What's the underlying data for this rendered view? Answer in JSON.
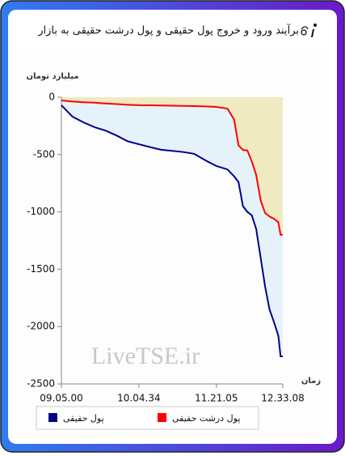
{
  "chart_data": {
    "type": "line",
    "title": "برآیند ورود و خروج پول حقیقی و پول درشت حقیقی به بازار",
    "y_label": "میلیارد تومان",
    "x_label": "زمان",
    "watermark": "LiveTSE.ir",
    "x": [
      0,
      5,
      10,
      15,
      20,
      25,
      30,
      35,
      40,
      45,
      50,
      55,
      60,
      65,
      70,
      75,
      78,
      80,
      82,
      84,
      86,
      88,
      90,
      92,
      94,
      96,
      98,
      99,
      100
    ],
    "series": [
      {
        "name": "پول حقیقی",
        "color": "#00008b",
        "values": [
          -70,
          -170,
          -220,
          -262,
          -292,
          -335,
          -385,
          -410,
          -435,
          -458,
          -468,
          -478,
          -494,
          -550,
          -600,
          -630,
          -690,
          -740,
          -950,
          -1000,
          -1030,
          -1150,
          -1400,
          -1650,
          -1850,
          -1960,
          -2080,
          -2260,
          -2260
        ]
      },
      {
        "name": "پول درشت حقیقی",
        "color": "#ff0000",
        "values": [
          -28,
          -38,
          -44,
          -48,
          -55,
          -60,
          -66,
          -70,
          -71,
          -72,
          -74,
          -76,
          -78,
          -80,
          -85,
          -100,
          -195,
          -420,
          -460,
          -465,
          -560,
          -680,
          -900,
          -1010,
          -1040,
          -1060,
          -1090,
          -1200,
          -1200
        ]
      }
    ],
    "xlim": [
      0,
      100
    ],
    "xticks": [
      {
        "value": 0,
        "label": "09.05.00"
      },
      {
        "value": 35,
        "label": "10.04.34"
      },
      {
        "value": 70,
        "label": "11.21.05"
      },
      {
        "value": 100,
        "label": "12.33.08"
      }
    ],
    "ylim": [
      -2500,
      0
    ],
    "yticks": [
      0,
      -500,
      -1000,
      -1500,
      -2000,
      -2500
    ],
    "grid": false
  }
}
